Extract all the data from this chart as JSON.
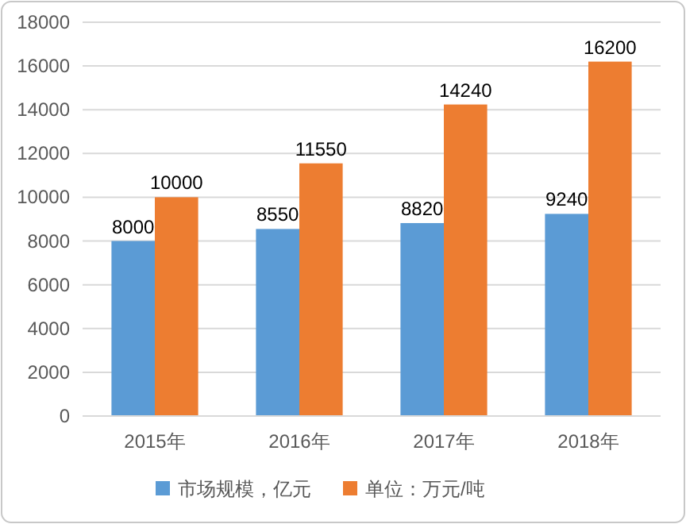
{
  "chart_data": {
    "type": "bar",
    "categories": [
      "2015年",
      "2016年",
      "2017年",
      "2018年"
    ],
    "series": [
      {
        "name": "市场规模，亿元",
        "color": "#5b9bd5",
        "values": [
          8000,
          8550,
          8820,
          9240
        ]
      },
      {
        "name": "单位：万元/吨",
        "color": "#ed7d31",
        "values": [
          10000,
          11550,
          14240,
          16200
        ]
      }
    ],
    "ylim": [
      0,
      18000
    ],
    "yticks": [
      0,
      2000,
      4000,
      6000,
      8000,
      10000,
      12000,
      14000,
      16000,
      18000
    ],
    "grid": "y",
    "legend": "bottom",
    "data_labels": true
  }
}
